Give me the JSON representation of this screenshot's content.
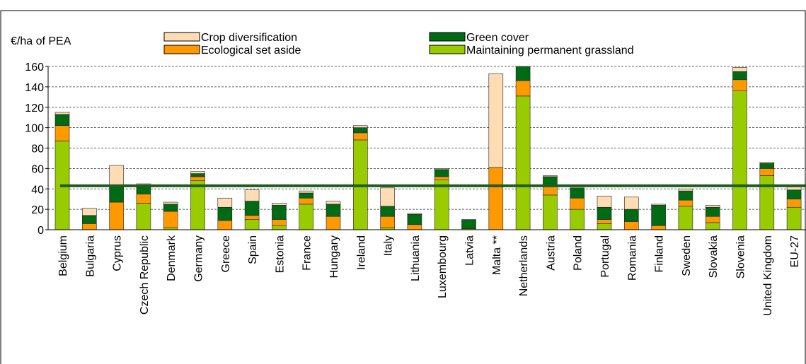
{
  "chart_data": {
    "type": "stacked-bar",
    "y_label": "€/ha of PEA",
    "categories": [
      "Belgium",
      "Bulgaria",
      "Cyprus",
      "Czech Republic",
      "Denmark",
      "Germany",
      "Greece",
      "Spain",
      "Estonia",
      "France",
      "Hungary",
      "Ireland",
      "Italy",
      "Lithuania",
      "Luxembourg",
      "Latvia",
      "Malta **",
      "Netherlands",
      "Austria",
      "Poland",
      "Portugal",
      "Romania",
      "Finland",
      "Sweden",
      "Slovakia",
      "Slovenia",
      "United Kingdom",
      "EU-27"
    ],
    "series": [
      {
        "name": "Maintaining permanent grassland",
        "color": "#99cc00",
        "values": [
          87,
          0,
          0,
          26,
          2,
          48,
          0,
          10,
          4,
          25,
          0,
          88,
          2,
          0,
          49,
          0,
          0,
          131,
          34,
          20,
          6,
          0,
          0,
          23,
          7,
          136,
          53,
          22
        ]
      },
      {
        "name": "Ecological set aside",
        "color": "#ff9900",
        "values": [
          15,
          6,
          27,
          9,
          16,
          4,
          9,
          4,
          6,
          6,
          13,
          7,
          11,
          5,
          3,
          1,
          61,
          15,
          8,
          11,
          4,
          8,
          4,
          6,
          6,
          11,
          7,
          8
        ]
      },
      {
        "name": "Green cover",
        "color": "#006a14",
        "values": [
          11,
          8,
          17,
          9,
          7,
          3,
          13,
          14,
          14,
          5,
          12,
          5,
          10,
          10,
          7,
          9,
          0,
          14,
          10,
          10,
          12,
          12,
          20,
          9,
          9,
          8,
          5,
          9
        ]
      },
      {
        "name": "Crop diversification",
        "color": "#ffdcb4",
        "values": [
          2,
          7,
          19,
          1,
          2,
          2,
          9,
          11,
          2,
          2,
          3,
          2,
          18,
          1,
          1,
          0,
          92,
          0,
          1,
          0,
          11,
          12,
          1,
          2,
          2,
          4,
          1,
          4
        ]
      }
    ],
    "reference_line": {
      "value": 43,
      "color": "#1f5c1f"
    },
    "ylim": [
      0,
      160
    ],
    "yticks": [
      0,
      20,
      40,
      60,
      80,
      100,
      120,
      140,
      160
    ],
    "grid": true
  }
}
